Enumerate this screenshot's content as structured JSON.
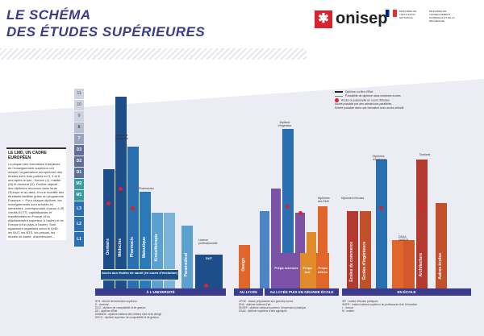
{
  "header": {
    "title_line1": "LE SCHÉMA",
    "title_line2": "DES ÉTUDES SUPÉRIEURES",
    "logo": "onisep",
    "ministry": [
      "MINISTÈRE DE L'ÉDUCATION NATIONALE",
      "MINISTÈRE DE L'ENSEIGNEMENT SUPÉRIEUR ET DE LA RECHERCHE"
    ]
  },
  "lmd_box": {
    "title": "LE LMD, UN CADRE EUROPÉEN",
    "text": "La plupart des formations françaises de l'enseignement supérieur ont adopté l'organisation européenne des études avec trois paliers en 3, 5 et 8 ans après le bac : licence (L), master (M) et doctorat (D). Double objectif : des diplômes reconnus dans toute l'Europe et au-delà, et une mobilité des étudiants facilitée grâce au programme Erasmus +. Pour chaque diplôme, les enseignements sont scindés en semestres, correspondant chacun à 30 crédits ECTS, capitalisables et transférables en France (d'un établissement supérieur à l'autre) et en Europe (d'un pays à l'autre). Sont également organisés selon le LMD : les DUT, les BTS, les prépas, les études de santé, d'architecture..."
  },
  "ladder": [
    "D3",
    "D2",
    "D1",
    "M2",
    "M1",
    "L3",
    "L2",
    "L1"
  ],
  "years": [
    "11",
    "10",
    "9",
    "8",
    "7",
    "6",
    "5",
    "4",
    "3",
    "2",
    "1"
  ],
  "legend": [
    "Diplôme ou titre d'État",
    "Possibilité de diplôme dans certaines écoles",
    "Accès ou passerelle en cours d'études",
    "Accès possible par des admissions parallèles",
    "Entrée possible dans une formation avec accès sélectif"
  ],
  "columns": {
    "universite": [
      "Dentaire",
      "Médecine",
      "Pharmacie",
      "Maïeutique",
      "Kinésithérapie",
      "Paramédical",
      "Licence",
      "Master",
      "Doctorat"
    ],
    "universite_tops": [
      "Médecine spécialiste",
      "Pharmacie spécialiste",
      "Dentaire spécialiste",
      "Médecin généraliste",
      "Pharmacien",
      "Sage-femme"
    ],
    "uni_base_label": "Accès aux études de santé (en cours d'évolution)",
    "iut": [
      "DUT",
      "BUT",
      "Licence professionnelle"
    ],
    "lycee": [
      "Design",
      "Prépa sciences",
      "Prépa éco",
      "Prépa lettres",
      "BTS",
      "DN MADE",
      "CPGE"
    ],
    "lycee_tops": [
      "Diplôme d'ingénieur",
      "Diplômes d'écoles de commerce",
      "Diplômes des ENS"
    ],
    "ecole": [
      "Écoles de commerce",
      "Écoles d'ingénieurs",
      "Art",
      "Architecture",
      "Social",
      "Paramédical",
      "Autres écoles",
      "Journalisme"
    ],
    "ecole_tops": [
      "Diplômes d'écoles",
      "Diplômes d'ingénieur",
      "DSAA DNSEP",
      "Diplôme d'architecte",
      "Doctorat"
    ]
  },
  "bottom_labels": {
    "university": "À L'UNIVERSITÉ",
    "lycee": "AU LYCÉE",
    "lycee_full": "AU LYCÉE PUIS EN GRANDE ÉCOLE",
    "ecole": "EN ÉCOLE"
  },
  "footnotes_left": [
    "BTS : Brevet de technicien supérieur",
    "D : doctorat",
    "DCG : diplôme de comptabilité et de gestion",
    "DE : diplôme d'État",
    "DNMADE : diplôme national des métiers d'art et du design",
    "DSCG : diplôme supérieur de comptabilité et de gestion"
  ],
  "footnotes_mid": [
    "CPGE : classe préparatoire aux grandes écoles",
    "DNA : diplôme national d'art",
    "DNSEP : diplôme national supérieur d'expression plastique",
    "DSAA : diplôme supérieur d'arts appliqués"
  ],
  "footnotes_right": [
    "IEP : Institut d'études politiques",
    "INSPE : Institut national supérieur du professorat et de l'éducation",
    "L : licence",
    "M : master"
  ],
  "colors": {
    "title": "#3b3b8e",
    "red": "#d9232d",
    "uni_dark": "#1d4e89",
    "uni_mid": "#2a7ab9",
    "uni_light": "#5ba0cf",
    "teal": "#3aa0a8",
    "lycee_purple": "#7b52a6",
    "orange": "#e0662a",
    "red_brown": "#b23a2f"
  }
}
